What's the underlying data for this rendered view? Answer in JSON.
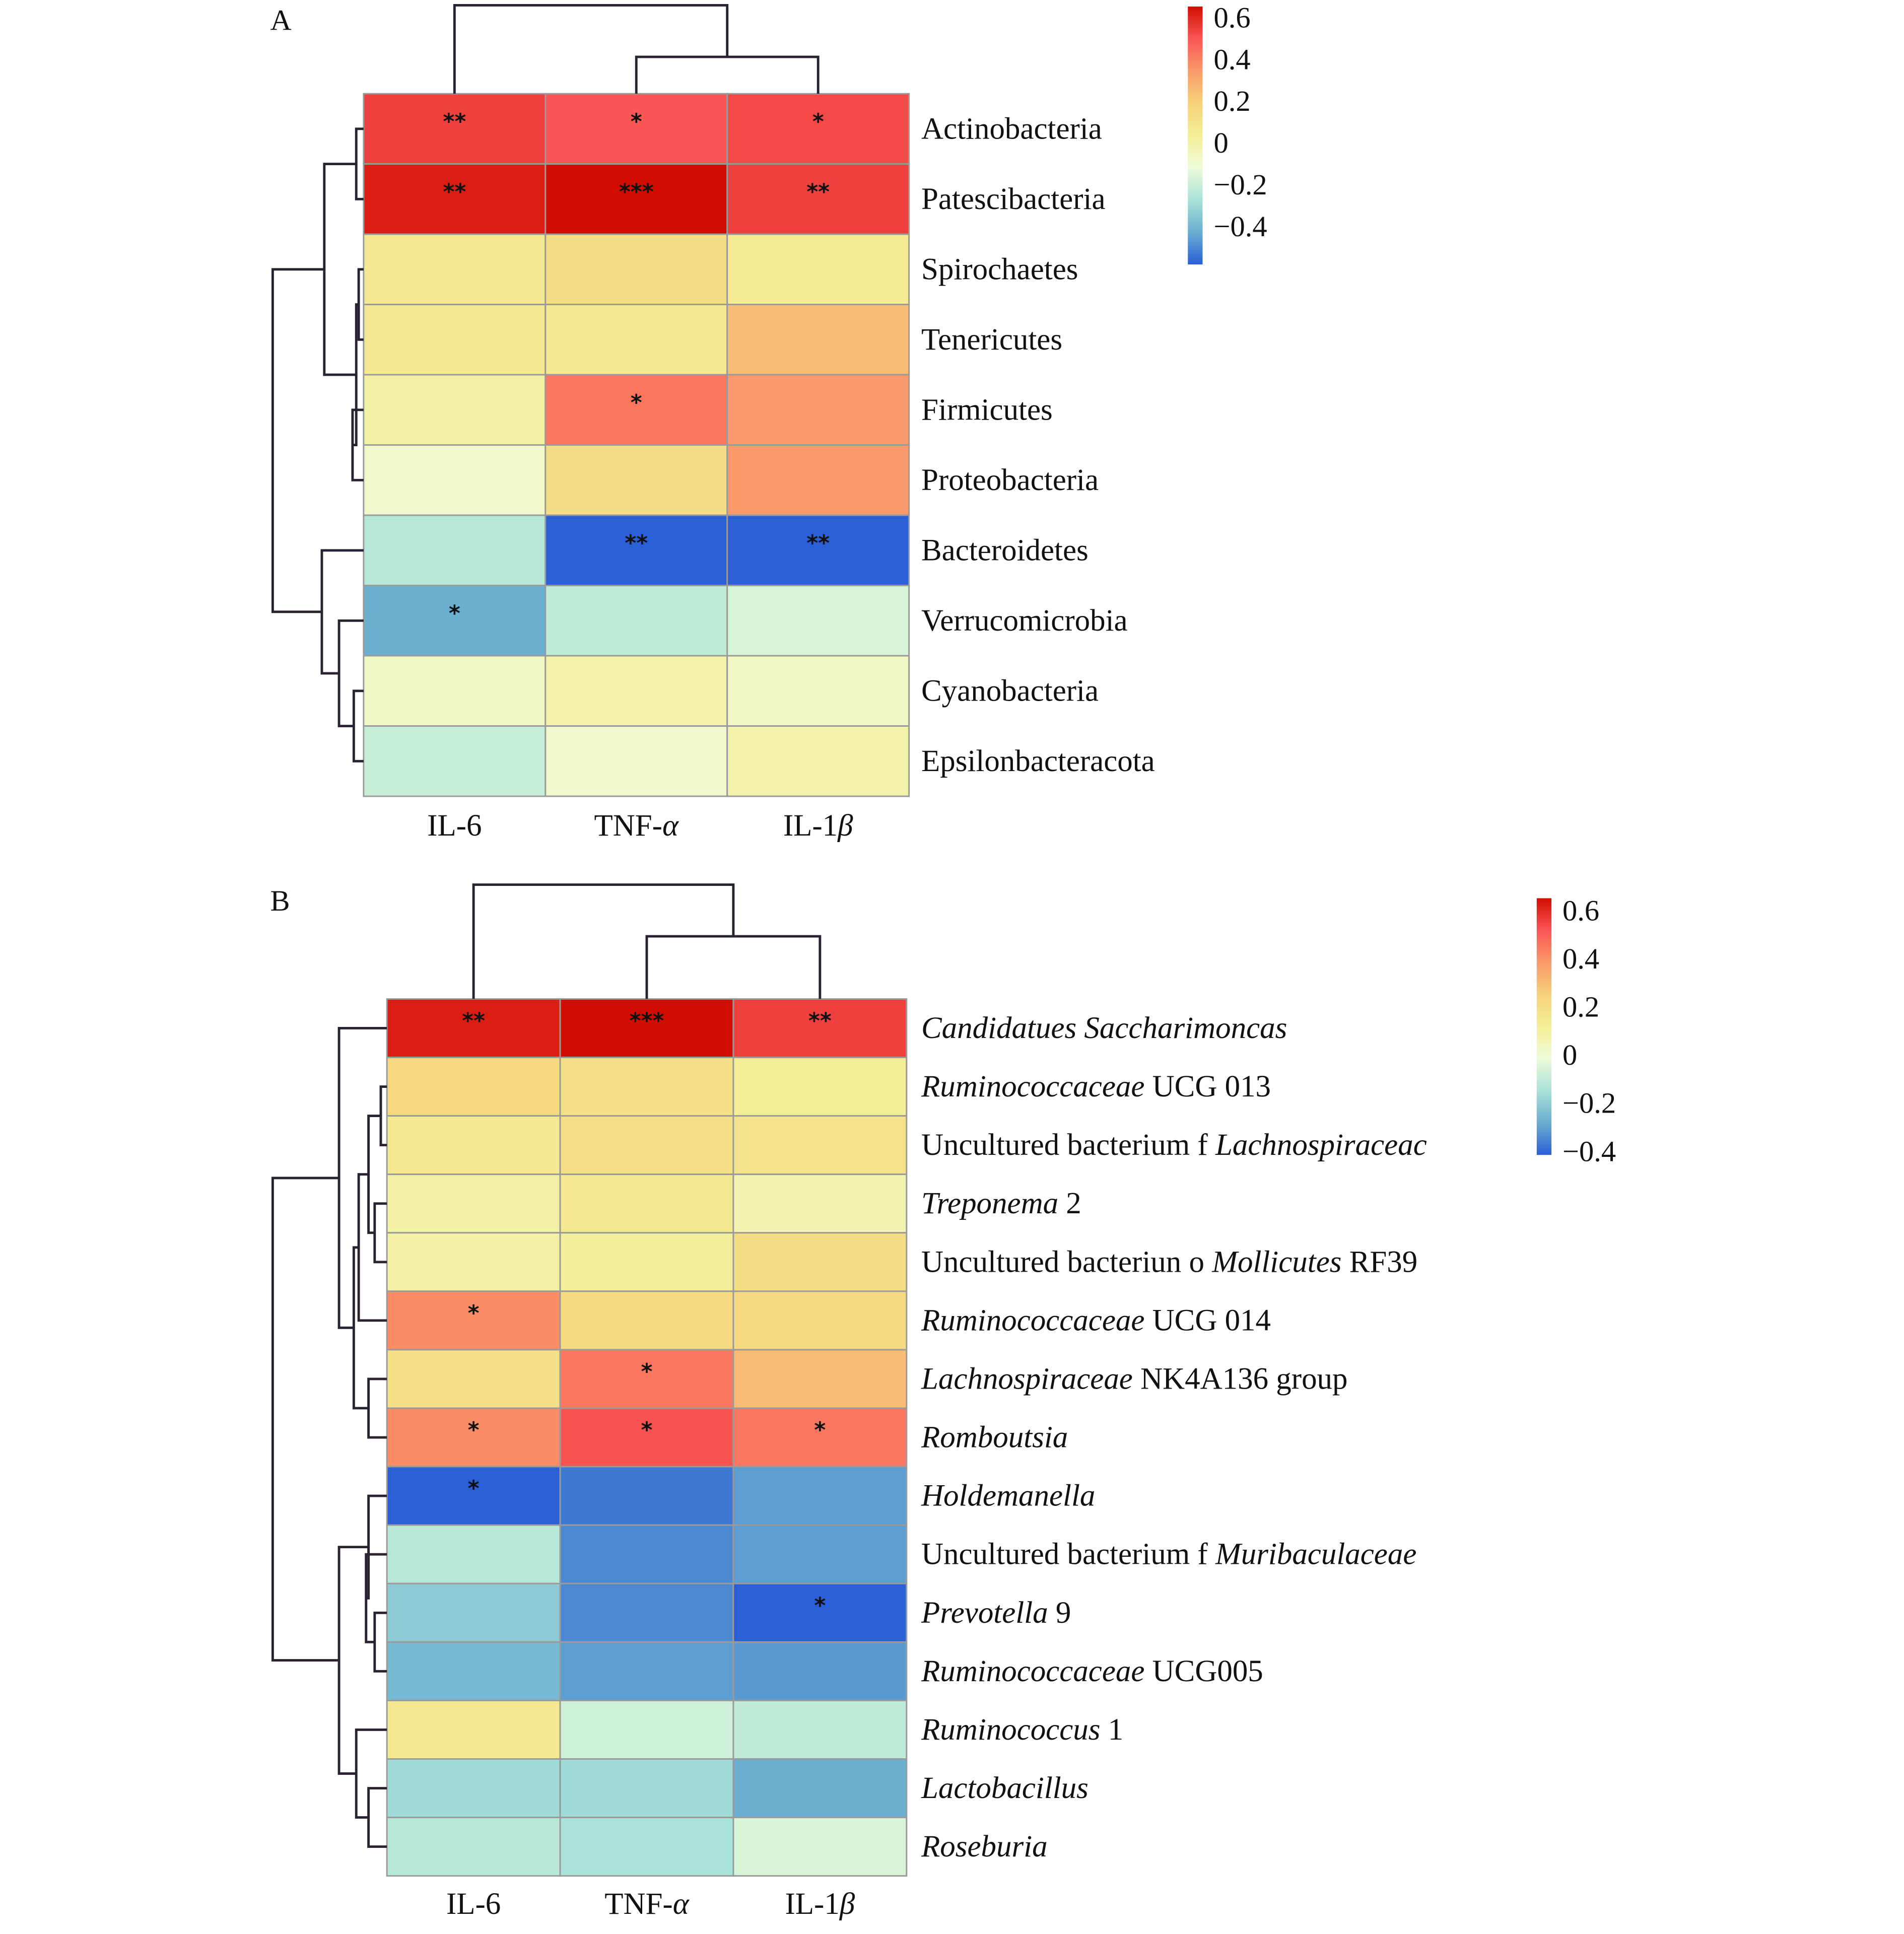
{
  "chart_data": [
    {
      "type": "heatmap",
      "panel_label": "A",
      "columns": [
        [
          {
            "t": "IL-6",
            "i": false
          }
        ],
        [
          {
            "t": "TNF-",
            "i": false
          },
          {
            "t": "α",
            "i": true
          }
        ],
        [
          {
            "t": "IL-1",
            "i": false
          },
          {
            "t": "β",
            "i": true
          }
        ]
      ],
      "rows": [
        [
          {
            "t": "Actinobacteria",
            "i": false
          }
        ],
        [
          {
            "t": "Patescibacteria",
            "i": false
          }
        ],
        [
          {
            "t": "Spirochaetes",
            "i": false
          }
        ],
        [
          {
            "t": "Tenericutes",
            "i": false
          }
        ],
        [
          {
            "t": "Firmicutes",
            "i": false
          }
        ],
        [
          {
            "t": "Proteobacteria",
            "i": false
          }
        ],
        [
          {
            "t": "Bacteroidetes",
            "i": false
          }
        ],
        [
          {
            "t": "Verrucomicrobia",
            "i": false
          }
        ],
        [
          {
            "t": "Cyanobacteria",
            "i": false
          }
        ],
        [
          {
            "t": "Epsilonbacteracota",
            "i": false
          }
        ]
      ],
      "values": [
        [
          0.5,
          0.45,
          0.48
        ],
        [
          0.58,
          0.62,
          0.5
        ],
        [
          0.12,
          0.16,
          0.11
        ],
        [
          0.12,
          0.12,
          0.24
        ],
        [
          0.08,
          0.38,
          0.3
        ],
        [
          0.02,
          0.16,
          0.3
        ],
        [
          -0.12,
          -0.45,
          -0.47
        ],
        [
          -0.3,
          -0.1,
          -0.05
        ],
        [
          0.03,
          0.07,
          0.03
        ],
        [
          -0.08,
          0.02,
          0.07
        ]
      ],
      "significance": [
        [
          "**",
          "*",
          "*"
        ],
        [
          "**",
          "***",
          "**"
        ],
        [
          "",
          "",
          ""
        ],
        [
          "",
          "",
          ""
        ],
        [
          "",
          "*",
          ""
        ],
        [
          "",
          "",
          ""
        ],
        [
          "",
          "**",
          "**"
        ],
        [
          "*",
          "",
          ""
        ],
        [
          "",
          "",
          ""
        ],
        [
          "",
          "",
          ""
        ]
      ],
      "colorbar": {
        "ticks": [
          "0.6",
          "0.4",
          "0.2",
          "0",
          "−0.2",
          "−0.4"
        ],
        "range": [
          -0.4,
          0.6
        ]
      }
    },
    {
      "type": "heatmap",
      "panel_label": "B",
      "columns": [
        [
          {
            "t": "IL-6",
            "i": false
          }
        ],
        [
          {
            "t": "TNF-",
            "i": false
          },
          {
            "t": "α",
            "i": true
          }
        ],
        [
          {
            "t": "IL-1",
            "i": false
          },
          {
            "t": "β",
            "i": true
          }
        ]
      ],
      "rows": [
        [
          {
            "t": "Candidatues Saccharimoncas",
            "i": true
          }
        ],
        [
          {
            "t": "Ruminococcaceae",
            "i": true
          },
          {
            "t": " UCG 013",
            "i": false
          }
        ],
        [
          {
            "t": "Uncultured bacterium f ",
            "i": false
          },
          {
            "t": "Lachnospiraceac",
            "i": true
          }
        ],
        [
          {
            "t": "Treponema",
            "i": true
          },
          {
            "t": " 2",
            "i": false
          }
        ],
        [
          {
            "t": "Uncultured bacteriun o ",
            "i": false
          },
          {
            "t": "Mollicutes",
            "i": true
          },
          {
            "t": " RF39",
            "i": false
          }
        ],
        [
          {
            "t": "Ruminococcaceae",
            "i": true
          },
          {
            "t": " UCG 014",
            "i": false
          }
        ],
        [
          {
            "t": "Lachnospiraceae",
            "i": true
          },
          {
            "t": " NK4A136 group",
            "i": false
          }
        ],
        [
          {
            "t": "Romboutsia",
            "i": true
          }
        ],
        [
          {
            "t": "Holdemanella",
            "i": true
          }
        ],
        [
          {
            "t": "Uncultured bacterium f ",
            "i": false
          },
          {
            "t": "Muribaculaceae",
            "i": true
          }
        ],
        [
          {
            "t": "Prevotella",
            "i": true
          },
          {
            "t": " 9",
            "i": false
          }
        ],
        [
          {
            "t": "Ruminococcaceae",
            "i": true
          },
          {
            "t": " UCG005",
            "i": false
          }
        ],
        [
          {
            "t": "Ruminococcus",
            "i": true
          },
          {
            "t": " 1",
            "i": false
          }
        ],
        [
          {
            "t": "Lactobacillus",
            "i": true
          }
        ],
        [
          {
            "t": "Roseburia",
            "i": true
          }
        ]
      ],
      "values": [
        [
          0.58,
          0.62,
          0.5
        ],
        [
          0.18,
          0.15,
          0.1
        ],
        [
          0.12,
          0.15,
          0.14
        ],
        [
          0.08,
          0.12,
          0.06
        ],
        [
          0.08,
          0.09,
          0.16
        ],
        [
          0.33,
          0.17,
          0.17
        ],
        [
          0.15,
          0.38,
          0.24
        ],
        [
          0.33,
          0.46,
          0.38
        ],
        [
          -0.45,
          -0.4,
          -0.33
        ],
        [
          -0.12,
          -0.37,
          -0.33
        ],
        [
          -0.22,
          -0.37,
          -0.45
        ],
        [
          -0.27,
          -0.33,
          -0.34
        ],
        [
          0.12,
          -0.07,
          -0.1
        ],
        [
          -0.17,
          -0.17,
          -0.3
        ],
        [
          -0.12,
          -0.15,
          -0.05
        ]
      ],
      "significance": [
        [
          "**",
          "***",
          "**"
        ],
        [
          "",
          "",
          ""
        ],
        [
          "",
          "",
          ""
        ],
        [
          "",
          "",
          ""
        ],
        [
          "",
          "",
          ""
        ],
        [
          "*",
          "",
          ""
        ],
        [
          "",
          "*",
          ""
        ],
        [
          "*",
          "*",
          "*"
        ],
        [
          "*",
          "",
          ""
        ],
        [
          "",
          "",
          ""
        ],
        [
          "",
          "",
          "*"
        ],
        [
          "",
          "",
          ""
        ],
        [
          "",
          "",
          ""
        ],
        [
          "",
          "",
          ""
        ],
        [
          "",
          "",
          ""
        ]
      ],
      "colorbar": {
        "ticks": [
          "0.6",
          "0.4",
          "0.2",
          "0",
          "−0.2",
          "−0.4"
        ],
        "range": [
          -0.4,
          0.6
        ]
      }
    }
  ],
  "colors": {
    "scale": [
      "#2a5fd6",
      "#6aaed0",
      "#a9e2d8",
      "#eefbd8",
      "#f4ee96",
      "#f6d27a",
      "#fa9a6a",
      "#fa5656",
      "#d00d00"
    ]
  }
}
